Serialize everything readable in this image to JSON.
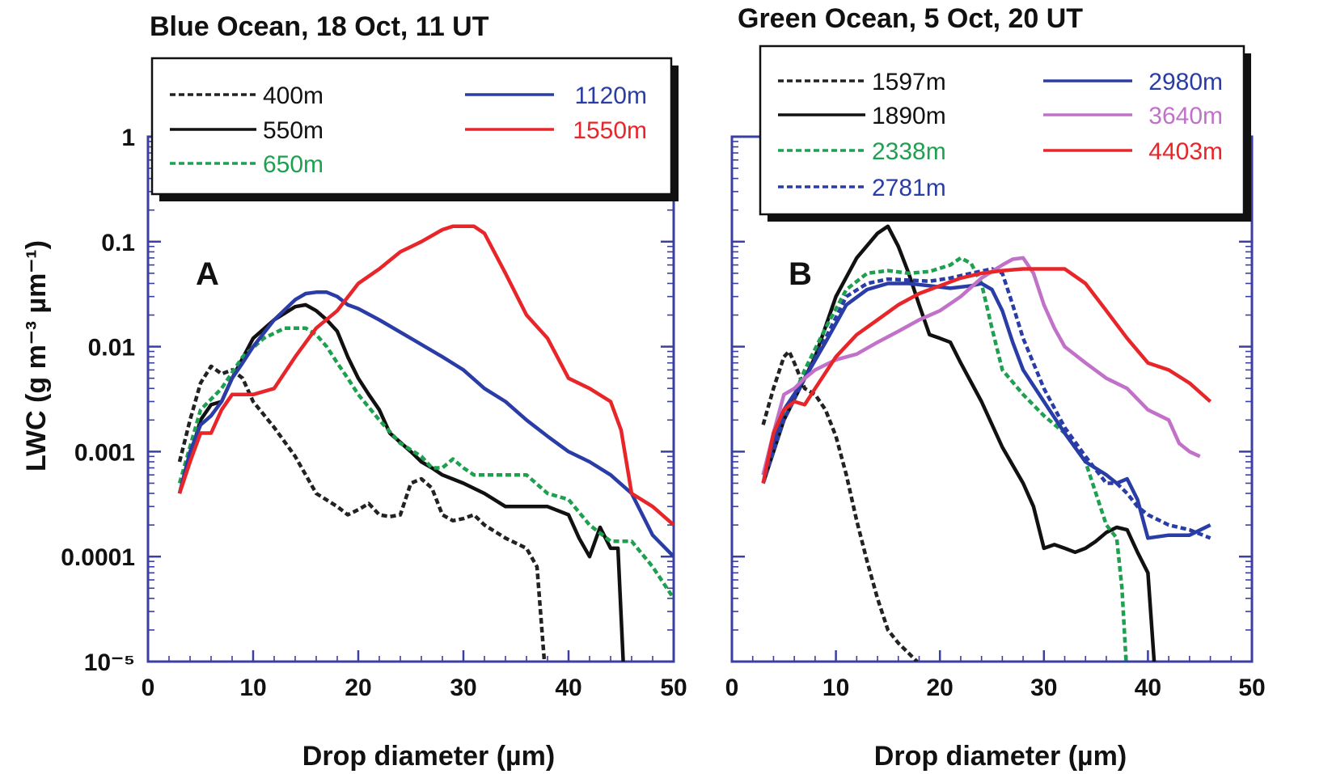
{
  "figure": {
    "ylabel": "LWC (g m⁻³ µm⁻¹)",
    "xlabel": "Drop diameter (µm)"
  },
  "chart_data": [
    {
      "type": "line",
      "title": "Blue Ocean, 18 Oct, 11 UT",
      "panel_label": "A",
      "xlabel": "Drop diameter (µm)",
      "ylabel": "LWC (g m⁻³ µm⁻¹)",
      "xlim": [
        0,
        50
      ],
      "ylim": [
        1e-05,
        1
      ],
      "yscale": "log",
      "xticks": [
        "0",
        "10",
        "20",
        "30",
        "40",
        "50"
      ],
      "yticks": [
        "10⁻⁵",
        "0.0001",
        "0.001",
        "0.01",
        "0.1",
        "1"
      ],
      "legend_position": "top",
      "series": [
        {
          "name": "400m",
          "color": "#222222",
          "dash": "dotted",
          "x": [
            3,
            4,
            5,
            6,
            7,
            8,
            9,
            10,
            12,
            14,
            16,
            18,
            19,
            20,
            21,
            22,
            23,
            24,
            25,
            26,
            27,
            28,
            29,
            30,
            31,
            32,
            34,
            36,
            37,
            37.7
          ],
          "y": [
            0.0008,
            0.002,
            0.0045,
            0.0065,
            0.0055,
            0.006,
            0.005,
            0.003,
            0.0017,
            0.0009,
            0.0004,
            0.0003,
            0.00025,
            0.00028,
            0.00032,
            0.00025,
            0.00024,
            0.00025,
            0.0005,
            0.00055,
            0.00045,
            0.00025,
            0.00022,
            0.00023,
            0.00025,
            0.0002,
            0.00015,
            0.00012,
            8e-05,
            1e-05
          ]
        },
        {
          "name": "550m",
          "color": "#111111",
          "dash": "solid",
          "x": [
            3,
            5,
            6,
            7,
            8,
            10,
            12,
            14,
            15,
            16,
            17,
            18,
            19,
            20,
            21,
            22,
            23,
            25,
            26,
            27,
            28,
            30,
            32,
            34,
            36,
            38,
            40,
            41,
            42,
            43,
            44,
            44.7,
            45.2
          ],
          "y": [
            0.0004,
            0.002,
            0.0028,
            0.003,
            0.005,
            0.012,
            0.018,
            0.024,
            0.025,
            0.022,
            0.018,
            0.014,
            0.008,
            0.005,
            0.0035,
            0.0025,
            0.0015,
            0.001,
            0.0008,
            0.0007,
            0.0006,
            0.0005,
            0.0004,
            0.0003,
            0.0003,
            0.0003,
            0.00025,
            0.00015,
            0.0001,
            0.00019,
            0.00012,
            0.00012,
            1e-05
          ]
        },
        {
          "name": "650m",
          "color": "#1fa050",
          "dash": "dotted",
          "x": [
            3,
            5,
            7,
            9,
            11,
            13,
            15,
            16,
            17,
            18,
            19,
            20,
            22,
            24,
            26,
            27,
            28,
            29,
            30,
            31,
            32,
            34,
            36,
            38,
            40,
            42,
            44,
            46,
            48,
            50
          ],
          "y": [
            0.0005,
            0.0025,
            0.004,
            0.008,
            0.012,
            0.015,
            0.015,
            0.013,
            0.01,
            0.007,
            0.005,
            0.0035,
            0.002,
            0.0012,
            0.0009,
            0.0007,
            0.0007,
            0.00085,
            0.0007,
            0.0006,
            0.0006,
            0.0006,
            0.0006,
            0.0004,
            0.00035,
            0.0002,
            0.00014,
            0.00014,
            8e-05,
            4e-05
          ]
        },
        {
          "name": "1120m",
          "color": "#2a3da6",
          "dash": "solid",
          "x": [
            3,
            4,
            5,
            6,
            7,
            8,
            9,
            10,
            12,
            14,
            15,
            16,
            17,
            18,
            19,
            20,
            22,
            25,
            28,
            30,
            32,
            34,
            36,
            38,
            40,
            42,
            44,
            46,
            48,
            50
          ],
          "y": [
            0.0004,
            0.001,
            0.0018,
            0.0022,
            0.003,
            0.005,
            0.007,
            0.01,
            0.018,
            0.028,
            0.032,
            0.033,
            0.033,
            0.03,
            0.025,
            0.023,
            0.018,
            0.012,
            0.008,
            0.006,
            0.004,
            0.003,
            0.002,
            0.0014,
            0.001,
            0.0008,
            0.0006,
            0.0004,
            0.00016,
            0.0001
          ]
        },
        {
          "name": "1550m",
          "color": "#e8262a",
          "dash": "solid",
          "x": [
            3,
            4,
            5,
            6,
            7,
            8,
            9,
            10,
            12,
            14,
            16,
            18,
            20,
            22,
            24,
            26,
            28,
            29,
            30,
            31,
            32,
            34,
            36,
            38,
            40,
            42,
            44,
            45,
            46,
            48,
            50
          ],
          "y": [
            0.0004,
            0.0008,
            0.0015,
            0.0015,
            0.0025,
            0.0035,
            0.0035,
            0.0035,
            0.004,
            0.008,
            0.015,
            0.022,
            0.04,
            0.055,
            0.08,
            0.1,
            0.13,
            0.14,
            0.14,
            0.14,
            0.12,
            0.05,
            0.02,
            0.012,
            0.005,
            0.004,
            0.003,
            0.0016,
            0.0004,
            0.0003,
            0.0002
          ]
        }
      ]
    },
    {
      "type": "line",
      "title": "Green Ocean, 5 Oct, 20 UT",
      "panel_label": "B",
      "xlabel": "Drop diameter (µm)",
      "ylabel": "LWC (g m⁻³ µm⁻¹)",
      "xlim": [
        0,
        50
      ],
      "ylim": [
        1e-05,
        1
      ],
      "yscale": "log",
      "xticks": [
        "0",
        "10",
        "20",
        "30",
        "40",
        "50"
      ],
      "yticks": [
        "10⁻⁵",
        "0.0001",
        "0.001",
        "0.01",
        "0.1",
        "1"
      ],
      "legend_position": "top",
      "series": [
        {
          "name": "1597m",
          "color": "#222222",
          "dash": "dotted",
          "x": [
            3,
            4,
            5,
            5.5,
            6,
            7,
            8,
            9,
            10,
            11,
            12,
            13,
            14,
            15,
            16,
            17,
            17.8
          ],
          "y": [
            0.0018,
            0.004,
            0.008,
            0.009,
            0.007,
            0.004,
            0.0035,
            0.0025,
            0.0014,
            0.0006,
            0.00022,
            9e-05,
            4e-05,
            2e-05,
            1.5e-05,
            1.2e-05,
            1e-05
          ]
        },
        {
          "name": "1890m",
          "color": "#111111",
          "dash": "solid",
          "x": [
            3,
            5,
            7,
            8,
            10,
            12,
            14,
            15,
            16,
            17,
            18,
            19,
            20,
            21,
            22,
            24,
            26,
            28,
            29,
            30,
            31,
            32,
            33,
            34,
            35,
            36,
            37,
            38,
            39,
            40,
            40.6
          ],
          "y": [
            0.0005,
            0.002,
            0.005,
            0.008,
            0.03,
            0.07,
            0.12,
            0.14,
            0.09,
            0.05,
            0.025,
            0.013,
            0.012,
            0.011,
            0.007,
            0.003,
            0.0011,
            0.0005,
            0.0003,
            0.00012,
            0.00013,
            0.00012,
            0.00011,
            0.00012,
            0.00014,
            0.00017,
            0.00019,
            0.00018,
            0.00011,
            7e-05,
            1e-05
          ]
        },
        {
          "name": "2338m",
          "color": "#1fa050",
          "dash": "dotted",
          "x": [
            3,
            5,
            7,
            9,
            11,
            13,
            15,
            17,
            19,
            21,
            22,
            23,
            24,
            25,
            26,
            28,
            30,
            32,
            34,
            35,
            36,
            37,
            37.5,
            37.9
          ],
          "y": [
            0.0005,
            0.002,
            0.006,
            0.015,
            0.035,
            0.05,
            0.053,
            0.05,
            0.052,
            0.06,
            0.07,
            0.062,
            0.04,
            0.015,
            0.006,
            0.0035,
            0.0022,
            0.0015,
            0.0008,
            0.0004,
            0.0002,
            0.00015,
            5e-05,
            1e-05
          ]
        },
        {
          "name": "2781m",
          "color": "#2a3da6",
          "dash": "dotted",
          "x": [
            3,
            5,
            7,
            9,
            11,
            13,
            15,
            17,
            19,
            21,
            23,
            25,
            26,
            27,
            28,
            30,
            32,
            34,
            36,
            37,
            38,
            39,
            40,
            42,
            44,
            46
          ],
          "y": [
            0.0005,
            0.002,
            0.005,
            0.012,
            0.03,
            0.04,
            0.044,
            0.043,
            0.042,
            0.045,
            0.05,
            0.055,
            0.05,
            0.025,
            0.012,
            0.004,
            0.0017,
            0.0009,
            0.0005,
            0.0005,
            0.0004,
            0.0003,
            0.00025,
            0.0002,
            0.00018,
            0.00015
          ]
        },
        {
          "name": "2980m",
          "color": "#2a3da6",
          "dash": "solid",
          "x": [
            3,
            5,
            7,
            9,
            11,
            13,
            15,
            17,
            19,
            21,
            23,
            24,
            25,
            26,
            27,
            28,
            30,
            32,
            34,
            36,
            37,
            38,
            39,
            40,
            42,
            44,
            46
          ],
          "y": [
            0.0006,
            0.0025,
            0.005,
            0.011,
            0.025,
            0.035,
            0.04,
            0.04,
            0.038,
            0.036,
            0.038,
            0.04,
            0.035,
            0.022,
            0.011,
            0.006,
            0.003,
            0.0015,
            0.0008,
            0.0006,
            0.0005,
            0.00055,
            0.00035,
            0.00015,
            0.00016,
            0.00016,
            0.0002
          ]
        },
        {
          "name": "3640m",
          "color": "#c172c8",
          "dash": "solid",
          "x": [
            3,
            4,
            5,
            6,
            7,
            8,
            10,
            12,
            14,
            16,
            18,
            20,
            22,
            24,
            26,
            27,
            28,
            29,
            30,
            31,
            32,
            34,
            36,
            38,
            40,
            42,
            43,
            44,
            45
          ],
          "y": [
            0.0006,
            0.0015,
            0.0035,
            0.004,
            0.005,
            0.006,
            0.0075,
            0.0085,
            0.011,
            0.014,
            0.018,
            0.022,
            0.03,
            0.045,
            0.06,
            0.068,
            0.07,
            0.05,
            0.025,
            0.015,
            0.01,
            0.007,
            0.005,
            0.004,
            0.0025,
            0.002,
            0.0012,
            0.001,
            0.0009
          ]
        },
        {
          "name": "4403m",
          "color": "#e8262a",
          "dash": "solid",
          "x": [
            3,
            4,
            5,
            6,
            7,
            8,
            10,
            12,
            14,
            16,
            18,
            20,
            22,
            24,
            26,
            28,
            30,
            32,
            34,
            36,
            38,
            40,
            42,
            44,
            46
          ],
          "y": [
            0.0005,
            0.0015,
            0.0025,
            0.003,
            0.0028,
            0.004,
            0.008,
            0.013,
            0.018,
            0.025,
            0.032,
            0.038,
            0.045,
            0.05,
            0.053,
            0.055,
            0.055,
            0.055,
            0.04,
            0.022,
            0.012,
            0.007,
            0.006,
            0.0045,
            0.003
          ]
        }
      ]
    }
  ]
}
